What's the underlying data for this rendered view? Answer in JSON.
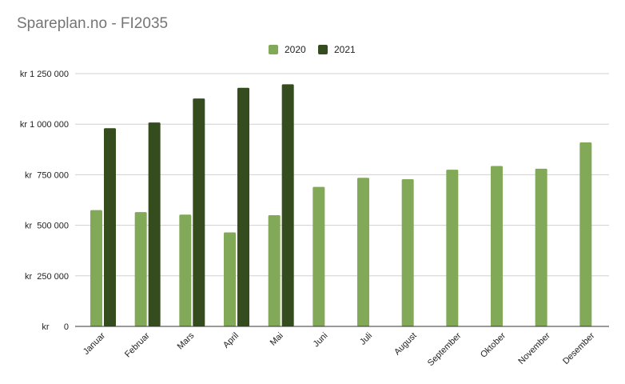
{
  "title": "Spareplan.no - FI2035",
  "legend": {
    "series_1": "2020",
    "series_2": "2021"
  },
  "colors": {
    "series_1": "#82a958",
    "series_2": "#354c1e",
    "grid": "#d0d0d0",
    "axis": "#333333"
  },
  "chart_data": {
    "type": "bar",
    "title": "Spareplan.no - FI2035",
    "xlabel": "",
    "ylabel": "",
    "categories": [
      "Januar",
      "Februar",
      "Mars",
      "April",
      "Mai",
      "Juni",
      "Juli",
      "August",
      "September",
      "Oktober",
      "November",
      "Desember"
    ],
    "series": [
      {
        "name": "2020",
        "values": [
          575000,
          565000,
          553000,
          465000,
          550000,
          690000,
          735000,
          728000,
          775000,
          793000,
          780000,
          910000
        ]
      },
      {
        "name": "2021",
        "values": [
          980000,
          1008000,
          1127000,
          1180000,
          1197000,
          null,
          null,
          null,
          null,
          null,
          null,
          null
        ]
      }
    ],
    "ylim": [
      0,
      1250000
    ],
    "yticks": [
      0,
      250000,
      500000,
      750000,
      1000000,
      1250000
    ],
    "ytick_labels": [
      "kr      0",
      "kr  250 000",
      "kr  500 000",
      "kr  750 000",
      "kr 1 000 000",
      "kr 1 250 000"
    ],
    "grid": true,
    "legend_position": "top"
  }
}
